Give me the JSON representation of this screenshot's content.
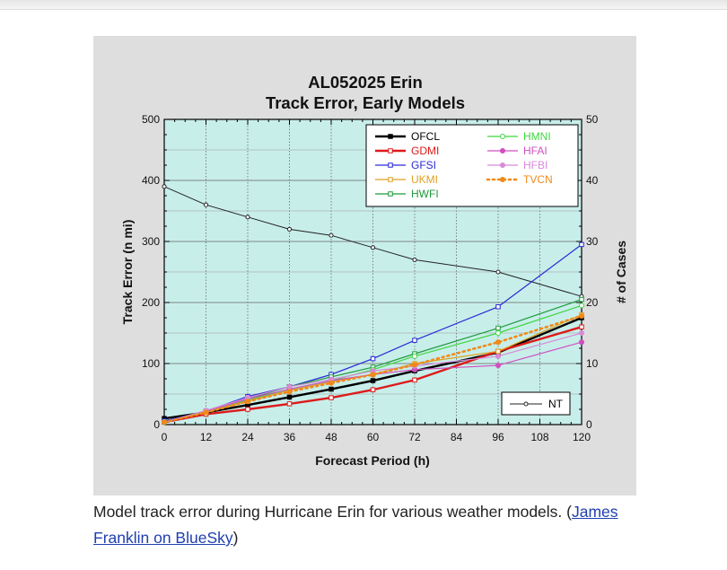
{
  "caption": {
    "text": "Model track error during Hurricane Erin for various weather models. (",
    "link_text": "James Franklin on BlueSky",
    "suffix": ")"
  },
  "chart_data": {
    "type": "line",
    "title": "AL052025 Erin",
    "subtitle": "Track Error, Early Models",
    "xlabel": "Forecast Period (h)",
    "ylabel": "Track Error (n mi)",
    "y2label": "# of Cases",
    "x": [
      0,
      12,
      24,
      36,
      48,
      60,
      72,
      96,
      120
    ],
    "xticks": [
      0,
      12,
      24,
      36,
      48,
      60,
      72,
      84,
      96,
      108,
      120
    ],
    "yticks": [
      0,
      100,
      200,
      300,
      400,
      500
    ],
    "y2ticks": [
      0,
      10,
      20,
      30,
      40,
      50
    ],
    "xlim": [
      0,
      120
    ],
    "ylim": [
      0,
      500
    ],
    "y2lim": [
      0,
      50
    ],
    "grid": true,
    "legend_position": "top-right",
    "series": [
      {
        "name": "OFCL",
        "color": "#000000",
        "style": "solid",
        "marker": "square-filled",
        "width": 2.4,
        "values": [
          10,
          20,
          32,
          45,
          58,
          72,
          88,
          118,
          175
        ]
      },
      {
        "name": "GDMI",
        "color": "#dd1a1a",
        "style": "solid",
        "marker": "square",
        "width": 2.4,
        "values": [
          4,
          17,
          25,
          34,
          44,
          57,
          73,
          120,
          160
        ]
      },
      {
        "name": "GFSI",
        "color": "#2a2ad6",
        "style": "solid",
        "marker": "square",
        "width": 1.2,
        "values": [
          6,
          22,
          46,
          62,
          82,
          108,
          138,
          193,
          295
        ]
      },
      {
        "name": "UKMI",
        "color": "#e0a020",
        "style": "solid",
        "marker": "square",
        "width": 1.2,
        "values": [
          4,
          20,
          38,
          56,
          70,
          82,
          100,
          120,
          180
        ]
      },
      {
        "name": "HWFI",
        "color": "#1f9a3a",
        "style": "solid",
        "marker": "square",
        "width": 1.2,
        "values": [
          4,
          21,
          42,
          62,
          78,
          94,
          116,
          158,
          205
        ]
      },
      {
        "name": "HMNI",
        "color": "#3fd640",
        "style": "solid",
        "marker": "circle",
        "width": 1.2,
        "values": [
          4,
          22,
          40,
          58,
          72,
          90,
          112,
          150,
          195
        ]
      },
      {
        "name": "HFAI",
        "color": "#d04fc0",
        "style": "solid",
        "marker": "circle-filled",
        "width": 1.2,
        "values": [
          4,
          22,
          42,
          58,
          72,
          82,
          90,
          97,
          135
        ]
      },
      {
        "name": "HFBI",
        "color": "#d88ad8",
        "style": "solid",
        "marker": "circle-filled",
        "width": 1.2,
        "values": [
          4,
          23,
          44,
          62,
          74,
          88,
          96,
          112,
          150
        ]
      },
      {
        "name": "TVCN",
        "color": "#f08a1a",
        "style": "dotted",
        "marker": "circle-filled",
        "width": 2.6,
        "values": [
          4,
          20,
          38,
          54,
          68,
          82,
          98,
          135,
          178
        ]
      }
    ],
    "cases_series": {
      "name": "NT",
      "color": "#222222",
      "values": [
        39,
        36,
        34,
        32,
        31,
        29,
        27,
        25,
        21
      ]
    }
  }
}
